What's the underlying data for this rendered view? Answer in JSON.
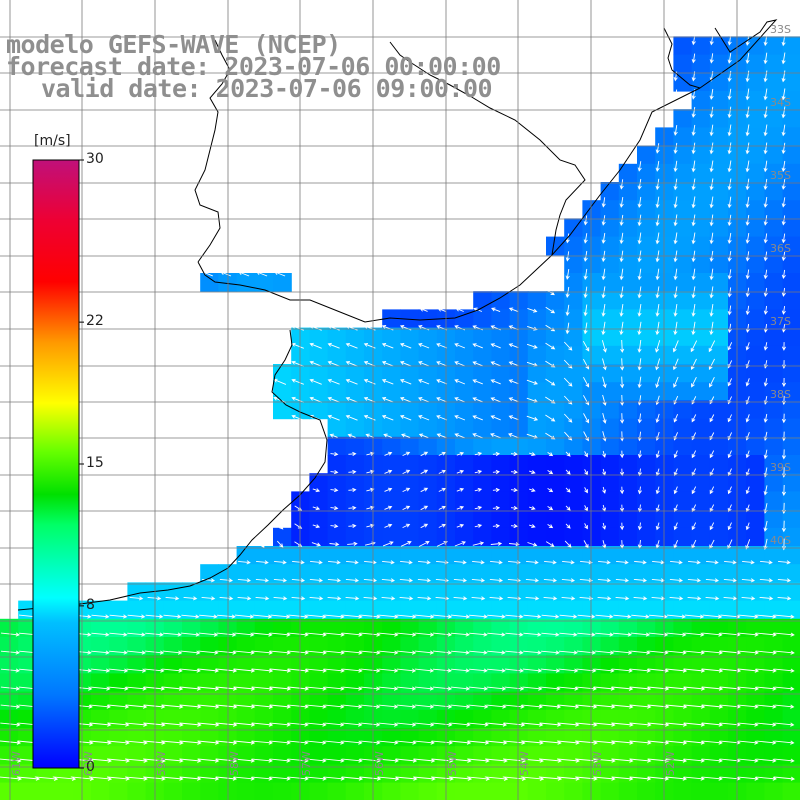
{
  "title": {
    "model": "modelo GEFS-WAVE (NCEP)",
    "forecast": "forecast date: 2023-07-06 00:00:00",
    "valid": "valid date: 2023-07-06 09:00:00"
  },
  "colorbar": {
    "units": "[m/s]",
    "ticks": [
      "30",
      "22",
      "15",
      "8",
      "0"
    ],
    "tick_values": [
      30,
      22,
      15,
      8,
      0
    ],
    "range": [
      0,
      30
    ],
    "colors": [
      "#0000ff",
      "#00aaff",
      "#00ffff",
      "#00e000",
      "#33ff00",
      "#ffff00",
      "#ff9900",
      "#ff0000",
      "#cc0077"
    ]
  },
  "map": {
    "variable": "wind speed",
    "land_color": "#ffffff",
    "coastline_color": "#000000",
    "grid_color": "#888888",
    "vector_color": "#ffffff",
    "lat_labels": [
      "33S",
      "34S",
      "35S",
      "36S",
      "37S",
      "38S",
      "39S",
      "40S"
    ],
    "lon_labels": [
      "61W",
      "60W",
      "59W",
      "58W",
      "57W",
      "56W",
      "55W",
      "54W",
      "53W",
      "52W"
    ]
  }
}
